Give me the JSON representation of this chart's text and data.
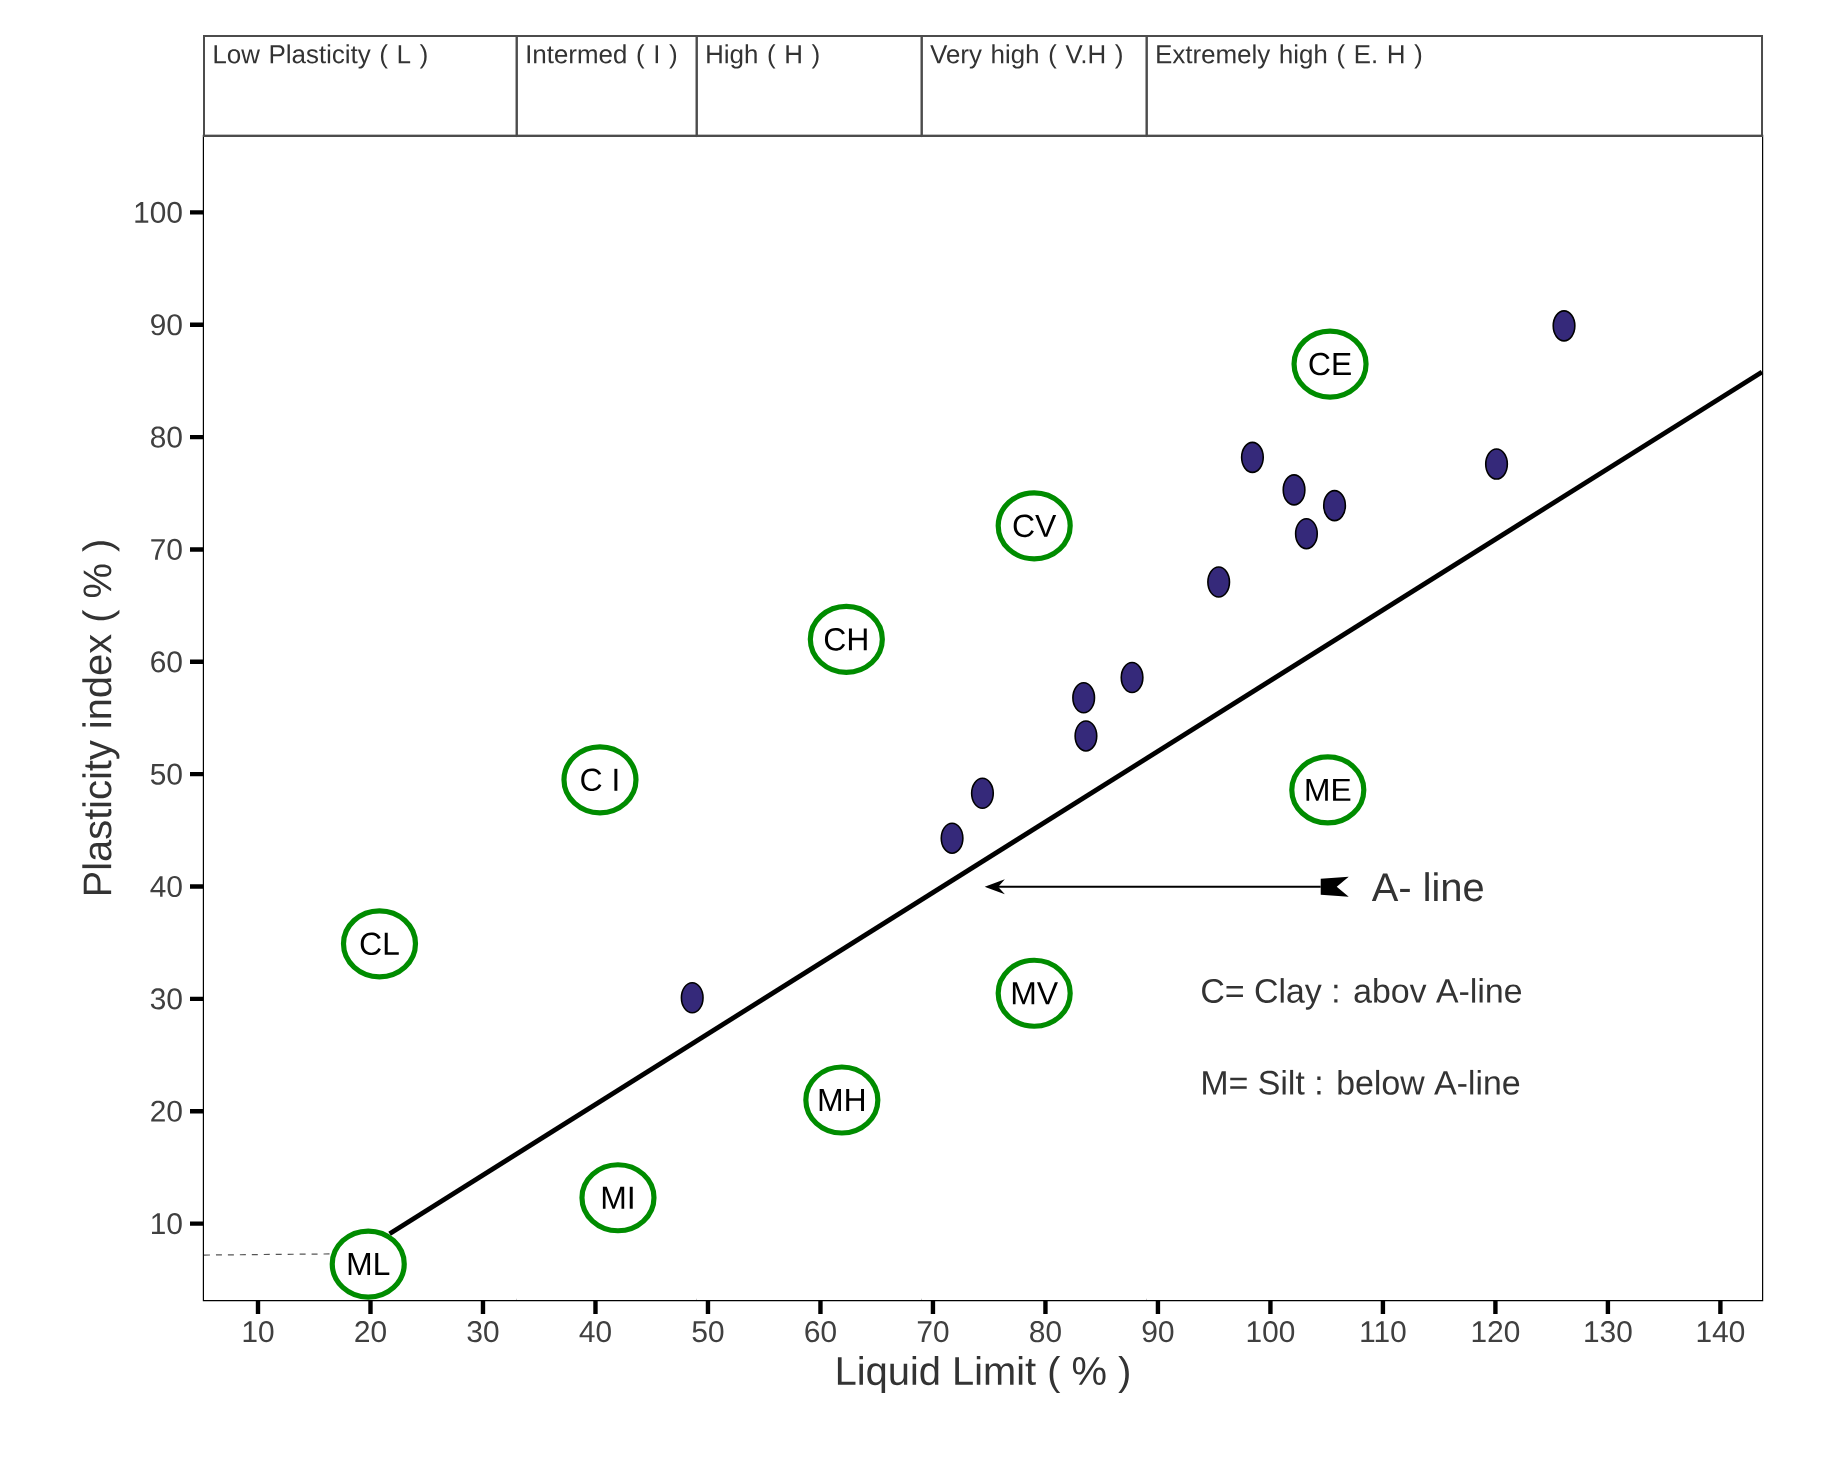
{
  "chart_data": {
    "type": "scatter",
    "xlabel": "Liquid Limit ( % )",
    "ylabel": "Plasticity index ( % )",
    "xlim": [
      5.2,
      143.7
    ],
    "ylim": [
      3.2,
      106.8
    ],
    "xticks": [
      10,
      20,
      30,
      40,
      50,
      60,
      70,
      80,
      90,
      100,
      110,
      120,
      130,
      140
    ],
    "yticks": [
      10,
      20,
      30,
      40,
      50,
      60,
      70,
      80,
      90,
      100
    ],
    "grid": false,
    "legend": "right",
    "series": [
      {
        "marker": "circle",
        "color": "#35297a",
        "x": [
          126.1,
          120.1,
          98.4,
          102.1,
          105.7,
          103.2,
          95.4,
          87.7,
          83.4,
          83.6,
          74.4,
          71.7,
          48.6
        ],
        "values": [
          89.9,
          77.6,
          78.2,
          75.3,
          73.9,
          71.4,
          67.1,
          58.6,
          56.8,
          53.4,
          48.3,
          44.3,
          30.1
        ]
      },
      {
        "name": "A- line",
        "type": "line",
        "line_style": "solid",
        "marker": "none",
        "color": "#000000",
        "x": [
          21.7,
          143.7
        ],
        "values": [
          9.1,
          85.8
        ]
      },
      {
        "type": "line",
        "line_style": "dashed",
        "marker": "none",
        "color": "#555555",
        "x": [
          5.2,
          16.4
        ],
        "values": [
          7.2,
          7.3
        ]
      }
    ],
    "bands": [
      {
        "axis": "x",
        "from": 5.2,
        "to": 33,
        "label": "Low Plasticity ( L )",
        "color": "#ffffff"
      },
      {
        "axis": "x",
        "from": 33,
        "to": 49,
        "label": "Intermed ( I )",
        "color": "#ffffff"
      },
      {
        "axis": "x",
        "from": 49,
        "to": 69,
        "label": "High ( H )",
        "color": "#ffffff"
      },
      {
        "axis": "x",
        "from": 69,
        "to": 89,
        "label": "Very high ( V.H )",
        "color": "#ffffff"
      },
      {
        "axis": "x",
        "from": 89,
        "to": 143.7,
        "label": "Extremely high ( E. H )",
        "color": "#ffffff"
      }
    ],
    "annotations": [
      {
        "text": "CE",
        "x": 105.3,
        "y": 86.5
      },
      {
        "text": "CV",
        "x": 79.0,
        "y": 72.1
      },
      {
        "text": "CH",
        "x": 62.3,
        "y": 62.0
      },
      {
        "text": "C I",
        "x": 40.4,
        "y": 49.5
      },
      {
        "text": "CL",
        "x": 20.8,
        "y": 34.9
      },
      {
        "text": "ME",
        "x": 105.1,
        "y": 48.6
      },
      {
        "text": "MV",
        "x": 79.0,
        "y": 30.5
      },
      {
        "text": "MH",
        "x": 61.9,
        "y": 21.0
      },
      {
        "text": "MI",
        "x": 42.0,
        "y": 12.3
      },
      {
        "text": "ML",
        "x": 19.8,
        "y": 6.4
      },
      "C= Clay : abov A-line",
      "M= Silt : below A-line"
    ]
  }
}
